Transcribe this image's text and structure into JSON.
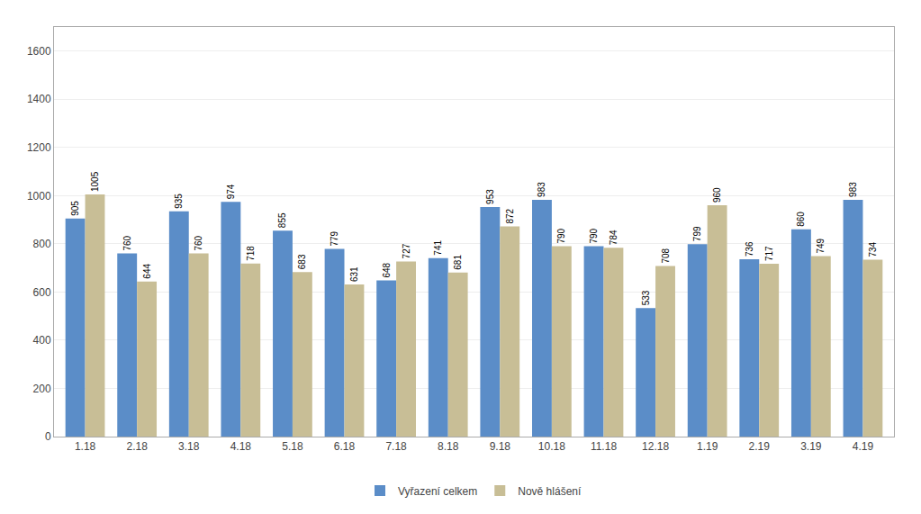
{
  "chart_data": {
    "type": "bar",
    "categories": [
      "1.18",
      "2.18",
      "3.18",
      "4.18",
      "5.18",
      "6.18",
      "7.18",
      "8.18",
      "9.18",
      "10.18",
      "11.18",
      "12.18",
      "1.19",
      "2.19",
      "3.19",
      "4.19"
    ],
    "series": [
      {
        "name": "Vyřazení celkem",
        "color": "#5B8DC8",
        "values": [
          905,
          760,
          935,
          974,
          855,
          779,
          648,
          741,
          953,
          983,
          790,
          533,
          799,
          736,
          860,
          983
        ]
      },
      {
        "name": "Nově hlášení",
        "color": "#C8BE96",
        "values": [
          1005,
          644,
          760,
          718,
          683,
          631,
          727,
          681,
          872,
          790,
          784,
          708,
          960,
          717,
          749,
          734
        ]
      }
    ],
    "ylim": [
      0,
      1700
    ],
    "yticks": [
      0,
      200,
      400,
      600,
      800,
      1000,
      1200,
      1400,
      1600
    ],
    "grid": true,
    "legend": "bottom",
    "data_labels": true
  }
}
